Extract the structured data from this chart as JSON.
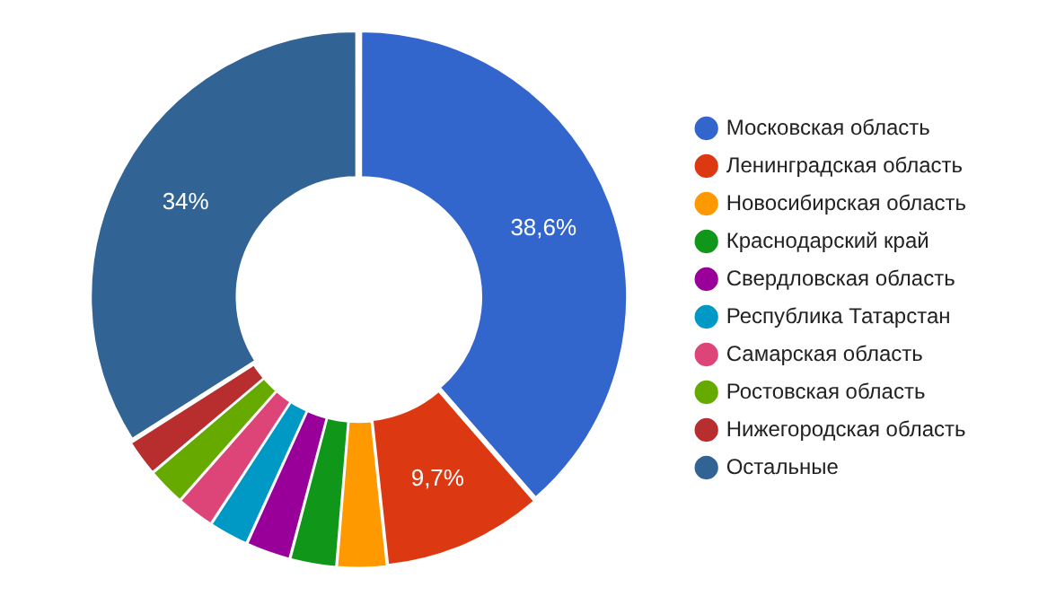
{
  "chart_data": {
    "type": "donut",
    "categories": [
      "Московская область",
      "Ленинградская область",
      "Новосибирская область",
      "Краснодарский край",
      "Свердловская область",
      "Республика Татарстан",
      "Самарская область",
      "Ростовская область",
      "Нижегородская область",
      "Остальные"
    ],
    "values": [
      38.6,
      9.7,
      3,
      2.8,
      2.7,
      2.4,
      2.3,
      2.3,
      2.2,
      34
    ],
    "value_labels": [
      "38,6%",
      "9,7%",
      null,
      null,
      null,
      null,
      null,
      null,
      null,
      "34%"
    ],
    "colors": [
      "#3366cc",
      "#dc3912",
      "#ff9900",
      "#109618",
      "#990099",
      "#0099c6",
      "#dd4477",
      "#66aa00",
      "#b82e2e",
      "#316395"
    ],
    "legend": "right"
  }
}
